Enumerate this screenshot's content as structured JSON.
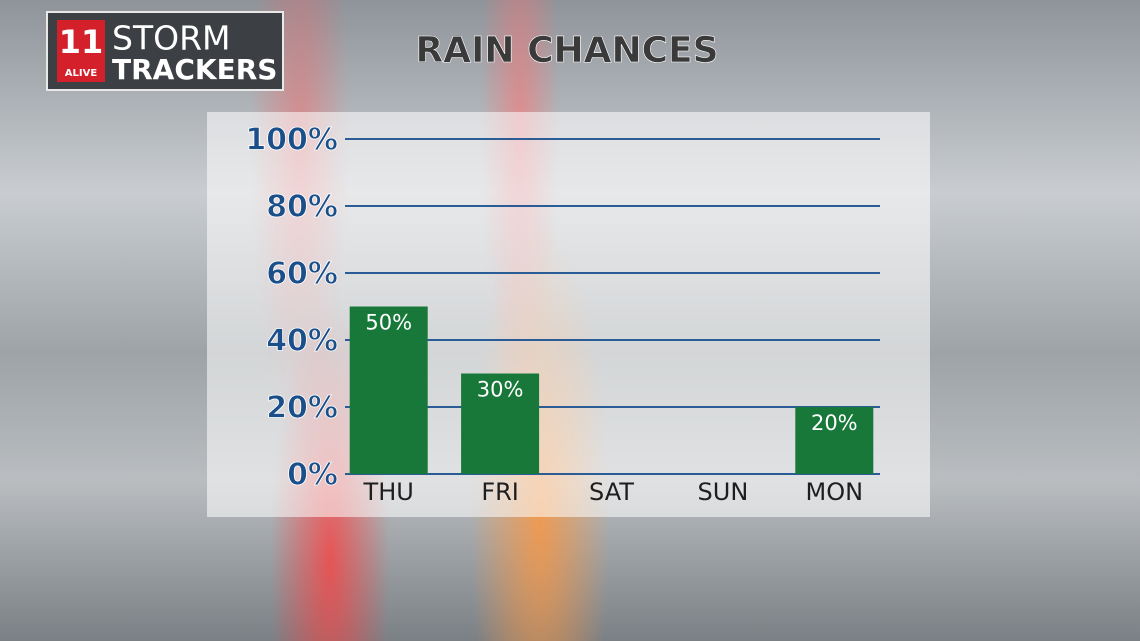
{
  "logo": {
    "number": "11",
    "station": "ALIVE",
    "line1": "STORM",
    "line2": "TRACKERS"
  },
  "chart_data": {
    "type": "bar",
    "title": "RAIN CHANCES",
    "categories": [
      "THU",
      "FRI",
      "SAT",
      "SUN",
      "MON"
    ],
    "values": [
      50,
      30,
      0,
      0,
      20
    ],
    "value_labels": [
      "50%",
      "30%",
      null,
      null,
      "20%"
    ],
    "color": "#17783a",
    "ylim": [
      0,
      100
    ],
    "yticks": [
      {
        "value": 0,
        "label": "0%"
      },
      {
        "value": 20,
        "label": "20%"
      },
      {
        "value": 40,
        "label": "40%"
      },
      {
        "value": 60,
        "label": "60%"
      },
      {
        "value": 80,
        "label": "80%"
      },
      {
        "value": 100,
        "label": "100%"
      }
    ],
    "grid": true
  }
}
